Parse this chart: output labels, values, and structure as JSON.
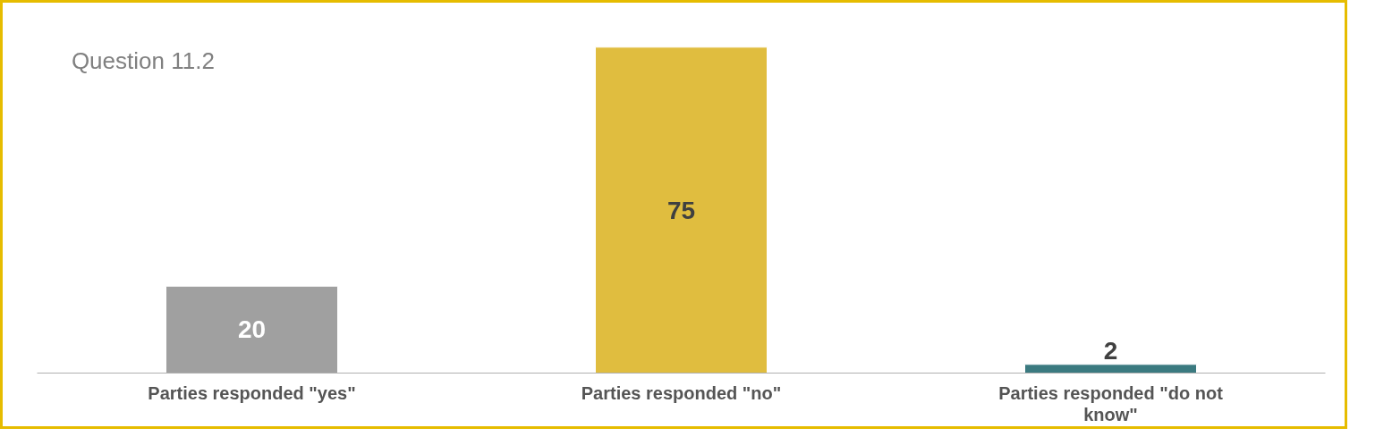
{
  "chart_data": {
    "type": "bar",
    "title": "Question 11.2",
    "categories": [
      "Parties responded \"yes\"",
      "Parties responded \"no\"",
      "Parties responded \"do not know\""
    ],
    "values": [
      20,
      75,
      2
    ],
    "colors": [
      "#a0a0a0",
      "#e0bd3f",
      "#3b7a80"
    ],
    "data_labels": true
  }
}
